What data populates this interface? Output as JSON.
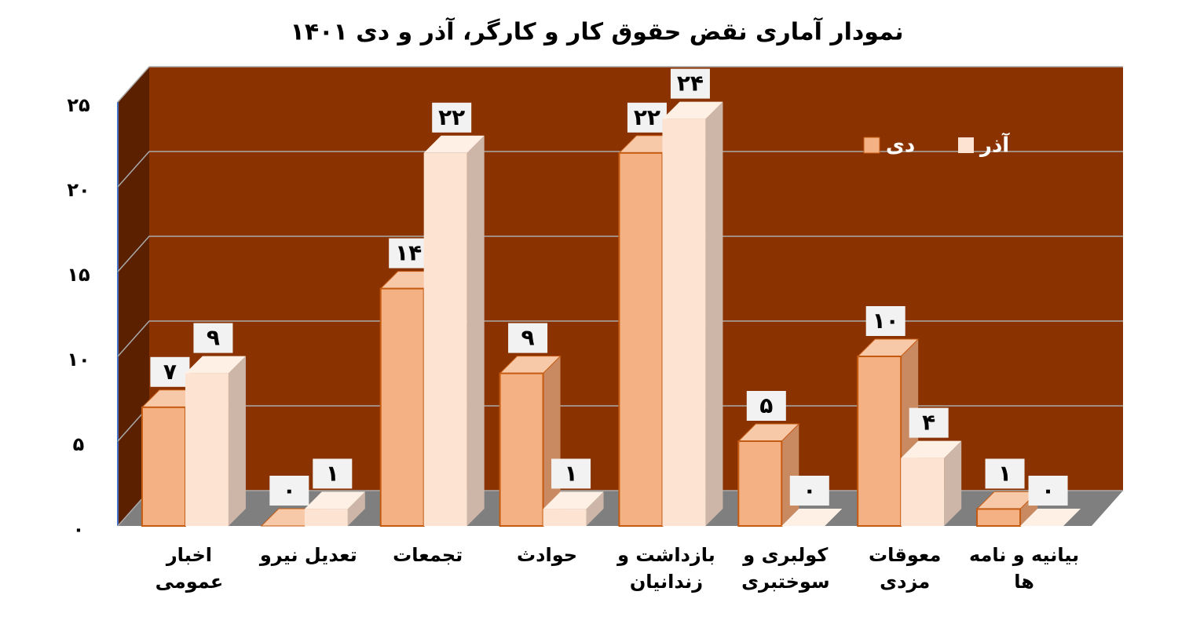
{
  "chart_data": {
    "type": "bar3d",
    "title": "نمودار آماری نقض حقوق کار و کارگر، آذر و دی ۱۴۰۱",
    "categories": [
      "اخبار عمومی",
      "تعدیل نیرو",
      "تجمعات",
      "حوادث",
      "بازداشت و زندانیان",
      "کولبری و سوختبری",
      "معوقات مزدی",
      "بیانیه و نامه ها"
    ],
    "series": [
      {
        "name": "دی",
        "color": "#f4b183",
        "values": [
          7,
          0,
          14,
          9,
          22,
          5,
          10,
          1
        ],
        "value_labels": [
          "۷",
          "۰",
          "۱۴",
          "۹",
          "۲۲",
          "۵",
          "۱۰",
          "۱"
        ]
      },
      {
        "name": "آذر",
        "color": "#fde3d2",
        "values": [
          9,
          1,
          22,
          1,
          24,
          0,
          4,
          0
        ],
        "value_labels": [
          "۹",
          "۱",
          "۲۲",
          "۱",
          "۲۴",
          "۰",
          "۴",
          "۰"
        ]
      }
    ],
    "ylim": [
      0,
      25
    ],
    "yticks": [
      {
        "value": 0,
        "label": "۰"
      },
      {
        "value": 5,
        "label": "۵"
      },
      {
        "value": 10,
        "label": "۱۰"
      },
      {
        "value": 15,
        "label": "۱۵"
      },
      {
        "value": 20,
        "label": "۲۰"
      },
      {
        "value": 25,
        "label": "۲۵"
      }
    ],
    "grid": true,
    "wall_color": "#8b3300",
    "legend_position": "top-right"
  }
}
